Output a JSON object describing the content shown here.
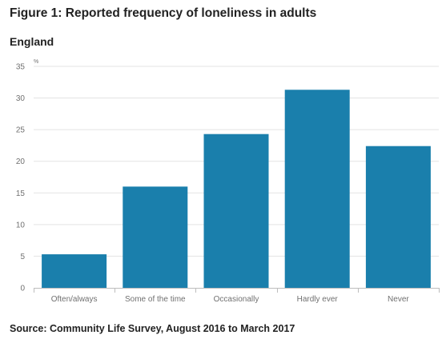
{
  "header": {
    "title": "Figure 1: Reported frequency of loneliness in adults",
    "subtitle": "England"
  },
  "footer": {
    "source": "Source: Community Life Survey, August 2016 to March 2017"
  },
  "colors": {
    "bar": "#1a7fac",
    "grid": "#e3e3e3",
    "axis": "#bdbdbd",
    "tick_text": "#707070"
  },
  "chart_data": {
    "type": "bar",
    "title": "Figure 1: Reported frequency of loneliness in adults",
    "subtitle": "England",
    "xlabel": "",
    "ylabel": "%",
    "categories": [
      "Often/always",
      "Some of the time",
      "Occasionally",
      "Hardly ever",
      "Never"
    ],
    "values": [
      5.3,
      16.0,
      24.3,
      31.3,
      22.4
    ],
    "ylim": [
      0,
      35
    ],
    "yticks": [
      0,
      5,
      10,
      15,
      20,
      25,
      30,
      35
    ],
    "grid": true,
    "legend": "none"
  }
}
